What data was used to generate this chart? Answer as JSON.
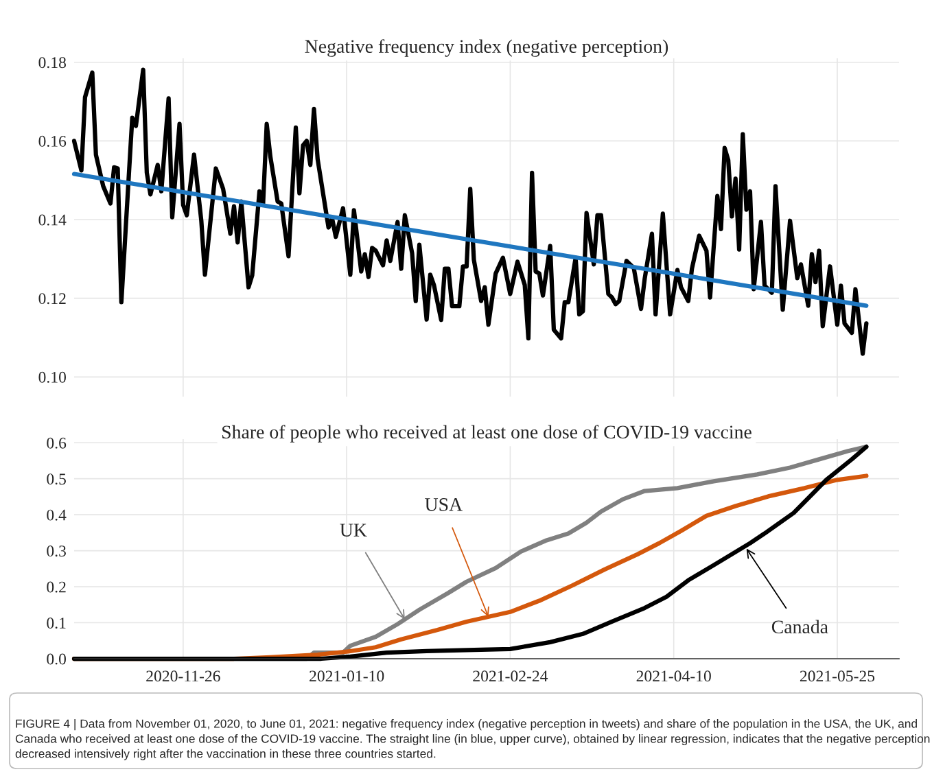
{
  "chart_data": [
    {
      "type": "line",
      "title": "Negative frequency index (negative perception)",
      "grid": true,
      "tick_labels": "y",
      "xlim": [
        "2020-10-27",
        "2021-06-11"
      ],
      "ylim": [
        0.095,
        0.181
      ],
      "xticks": [
        "2020-11-26",
        "2021-01-10",
        "2021-02-24",
        "2021-04-10",
        "2021-05-25"
      ],
      "yticks": [
        {
          "value": 0.1,
          "label": "0.10"
        },
        {
          "value": 0.12,
          "label": "0.12"
        },
        {
          "value": 0.14,
          "label": "0.14"
        },
        {
          "value": 0.16,
          "label": "0.16"
        },
        {
          "value": 0.18,
          "label": "0.18"
        }
      ],
      "series": [
        {
          "type": "line",
          "color": "#000000",
          "x": [
            "2020-10-27",
            "2020-10-29",
            "2020-10-30",
            "2020-11-01",
            "2020-11-02",
            "2020-11-04",
            "2020-11-06",
            "2020-11-07",
            "2020-11-08",
            "2020-11-09",
            "2020-11-11",
            "2020-11-12",
            "2020-11-13",
            "2020-11-15",
            "2020-11-16",
            "2020-11-17",
            "2020-11-19",
            "2020-11-20",
            "2020-11-22",
            "2020-11-23",
            "2020-11-25",
            "2020-11-26",
            "2020-11-27",
            "2020-11-29",
            "2020-12-01",
            "2020-12-02",
            "2020-12-05",
            "2020-12-07",
            "2020-12-09",
            "2020-12-10",
            "2020-12-11",
            "2020-12-12",
            "2020-12-14",
            "2020-12-15",
            "2020-12-17",
            "2020-12-18",
            "2020-12-19",
            "2020-12-20",
            "2020-12-22",
            "2020-12-23",
            "2020-12-25",
            "2020-12-27",
            "2020-12-28",
            "2020-12-29",
            "2020-12-30",
            "2020-12-31",
            "2021-01-01",
            "2021-01-02",
            "2021-01-05",
            "2021-01-06",
            "2021-01-07",
            "2021-01-09",
            "2021-01-11",
            "2021-01-12",
            "2021-01-14",
            "2021-01-15",
            "2021-01-16",
            "2021-01-17",
            "2021-01-18",
            "2021-01-20",
            "2021-01-21",
            "2021-01-22",
            "2021-01-24",
            "2021-01-25",
            "2021-01-26",
            "2021-01-28",
            "2021-01-29",
            "2021-01-30",
            "2021-02-01",
            "2021-02-02",
            "2021-02-03",
            "2021-02-05",
            "2021-02-06",
            "2021-02-07",
            "2021-02-08",
            "2021-02-10",
            "2021-02-11",
            "2021-02-12",
            "2021-02-13",
            "2021-02-14",
            "2021-02-16",
            "2021-02-17",
            "2021-02-18",
            "2021-02-20",
            "2021-02-22",
            "2021-02-24",
            "2021-02-26",
            "2021-02-28",
            "2021-03-01",
            "2021-03-02",
            "2021-03-03",
            "2021-03-04",
            "2021-03-05",
            "2021-03-07",
            "2021-03-08",
            "2021-03-10",
            "2021-03-11",
            "2021-03-12",
            "2021-03-14",
            "2021-03-15",
            "2021-03-16",
            "2021-03-17",
            "2021-03-19",
            "2021-03-20",
            "2021-03-21",
            "2021-03-23",
            "2021-03-24",
            "2021-03-25",
            "2021-03-26",
            "2021-03-28",
            "2021-03-30",
            "2021-04-01",
            "2021-04-02",
            "2021-04-04",
            "2021-04-05",
            "2021-04-07",
            "2021-04-09",
            "2021-04-11",
            "2021-04-12",
            "2021-04-14",
            "2021-04-15",
            "2021-04-17",
            "2021-04-19",
            "2021-04-20",
            "2021-04-22",
            "2021-04-23",
            "2021-04-24",
            "2021-04-25",
            "2021-04-26",
            "2021-04-27",
            "2021-04-28",
            "2021-04-29",
            "2021-04-30",
            "2021-05-01",
            "2021-05-02",
            "2021-05-04",
            "2021-05-05",
            "2021-05-07",
            "2021-05-08",
            "2021-05-10",
            "2021-05-12",
            "2021-05-14",
            "2021-05-15",
            "2021-05-17",
            "2021-05-18",
            "2021-05-19",
            "2021-05-20",
            "2021-05-21",
            "2021-05-23",
            "2021-05-25",
            "2021-05-26",
            "2021-05-27",
            "2021-05-29",
            "2021-05-30",
            "2021-06-01",
            "2021-06-02"
          ],
          "values": [
            0.16,
            0.1525,
            0.1711,
            0.1774,
            0.1565,
            0.1485,
            0.1441,
            0.1533,
            0.153,
            0.119,
            0.1504,
            0.1659,
            0.1638,
            0.1781,
            0.1519,
            0.1464,
            0.1539,
            0.1472,
            0.1708,
            0.1406,
            0.1643,
            0.1437,
            0.1411,
            0.1565,
            0.1397,
            0.126,
            0.153,
            0.1478,
            0.1364,
            0.1434,
            0.1342,
            0.1446,
            0.1228,
            0.1258,
            0.1472,
            0.1441,
            0.1643,
            0.156,
            0.1446,
            0.1441,
            0.1307,
            0.1634,
            0.1467,
            0.1589,
            0.16,
            0.1539,
            0.1681,
            0.1554,
            0.138,
            0.1403,
            0.1356,
            0.1429,
            0.126,
            0.1424,
            0.1268,
            0.1312,
            0.1254,
            0.1328,
            0.1321,
            0.1284,
            0.1347,
            0.1295,
            0.1394,
            0.1275,
            0.1411,
            0.1315,
            0.1193,
            0.1336,
            0.1146,
            0.126,
            0.1234,
            0.1145,
            0.1275,
            0.1275,
            0.118,
            0.118,
            0.1281,
            0.1281,
            0.1478,
            0.1298,
            0.1193,
            0.1228,
            0.1133,
            0.1263,
            0.1303,
            0.1211,
            0.1293,
            0.1234,
            0.1098,
            0.1519,
            0.1268,
            0.1263,
            0.1207,
            0.1333,
            0.112,
            0.1098,
            0.119,
            0.119,
            0.1303,
            0.1159,
            0.1167,
            0.1417,
            0.1286,
            0.1411,
            0.1411,
            0.1211,
            0.1202,
            0.1185,
            0.1193,
            0.1295,
            0.1277,
            0.1173,
            0.1249,
            0.1364,
            0.1159,
            0.1415,
            0.1159,
            0.1272,
            0.1228,
            0.1193,
            0.1275,
            0.1359,
            0.1321,
            0.1202,
            0.146,
            0.1376,
            0.1582,
            0.1551,
            0.1408,
            0.1504,
            0.1324,
            0.1617,
            0.1425,
            0.1472,
            0.1223,
            0.1394,
            0.1232,
            0.1214,
            0.1485,
            0.1171,
            0.1397,
            0.1251,
            0.1286,
            0.1181,
            0.1312,
            0.1241,
            0.1321,
            0.1129,
            0.1281,
            0.1133,
            0.1232,
            0.1136,
            0.1112,
            0.1223,
            0.1059,
            0.1136
          ]
        },
        {
          "type": "line",
          "color": "#1f77c0",
          "x": [
            "2020-10-27",
            "2021-06-02"
          ],
          "values": [
            0.1516,
            0.1181
          ]
        }
      ]
    },
    {
      "type": "line",
      "title": "Share of people who received at least one dose of COVID-19 vaccine",
      "grid": true,
      "xlim": [
        "2020-10-27",
        "2021-06-11"
      ],
      "ylim": [
        0,
        0.61
      ],
      "xticks": [
        "2020-11-26",
        "2021-01-10",
        "2021-02-24",
        "2021-04-10",
        "2021-05-25"
      ],
      "yticks": [
        {
          "value": 0,
          "label": "0.0"
        },
        0.1,
        0.2,
        0.3,
        0.4,
        0.5,
        0.6
      ],
      "series": [
        {
          "color": "#808080",
          "x": [
            "2020-10-27",
            "2020-12-30",
            "2021-01-01",
            "2021-01-09",
            "2021-01-11",
            "2021-01-18",
            "2021-01-24",
            "2021-01-30",
            "2021-02-07",
            "2021-02-12",
            "2021-02-20",
            "2021-02-27",
            "2021-03-06",
            "2021-03-12",
            "2021-03-17",
            "2021-03-21",
            "2021-03-27",
            "2021-04-02",
            "2021-04-11",
            "2021-04-21",
            "2021-05-03",
            "2021-05-12",
            "2021-05-20",
            "2021-05-28",
            "2021-06-02"
          ],
          "values": [
            0,
            0,
            0.017,
            0.017,
            0.036,
            0.061,
            0.096,
            0.136,
            0.183,
            0.214,
            0.252,
            0.298,
            0.329,
            0.348,
            0.378,
            0.409,
            0.443,
            0.466,
            0.474,
            0.493,
            0.512,
            0.531,
            0.554,
            0.577,
            0.589
          ]
        },
        {
          "color": "#d4580c",
          "x": [
            "2020-10-27",
            "2020-12-10",
            "2020-12-20",
            "2021-01-02",
            "2021-01-11",
            "2021-01-18",
            "2021-01-25",
            "2021-02-04",
            "2021-02-12",
            "2021-02-24",
            "2021-03-04",
            "2021-03-13",
            "2021-03-22",
            "2021-03-31",
            "2021-04-06",
            "2021-04-12",
            "2021-04-19",
            "2021-04-27",
            "2021-05-06",
            "2021-05-16",
            "2021-05-25",
            "2021-06-02"
          ],
          "values": [
            0,
            0,
            0.004,
            0.011,
            0.021,
            0.032,
            0.054,
            0.08,
            0.103,
            0.13,
            0.161,
            0.203,
            0.248,
            0.29,
            0.321,
            0.355,
            0.397,
            0.424,
            0.451,
            0.474,
            0.497,
            0.508
          ]
        },
        {
          "color": "#000000",
          "x": [
            "2020-10-27",
            "2021-01-03",
            "2021-01-11",
            "2021-01-21",
            "2021-02-01",
            "2021-02-16",
            "2021-02-24",
            "2021-03-07",
            "2021-03-16",
            "2021-03-24",
            "2021-04-02",
            "2021-04-08",
            "2021-04-14",
            "2021-04-21",
            "2021-05-01",
            "2021-05-05",
            "2021-05-13",
            "2021-05-22",
            "2021-05-29",
            "2021-06-02"
          ],
          "values": [
            0,
            0,
            0.006,
            0.017,
            0.021,
            0.025,
            0.027,
            0.046,
            0.069,
            0.103,
            0.141,
            0.172,
            0.218,
            0.26,
            0.321,
            0.348,
            0.405,
            0.497,
            0.554,
            0.589
          ]
        }
      ],
      "annotations": [
        {
          "text": "UK",
          "x": "2021-01-26",
          "y": 0.109
        },
        {
          "text": "USA",
          "x": "2021-02-18",
          "y": 0.1165
        },
        {
          "text": "Canada",
          "x": "2021-04-30",
          "y": 0.306
        },
        "FIGURE 4 | Data from November 01, 2020, to June 01, 2021: negative frequency index (negative perception in tweets) and share of the population in the USA, the UK, and Canada who received at least one dose of the COVID-19 vaccine. The straight line (in blue, upper curve), obtained by linear regression, indicates that the negative perception decreased intensively right after the vaccination in these three countries started."
      ]
    }
  ]
}
